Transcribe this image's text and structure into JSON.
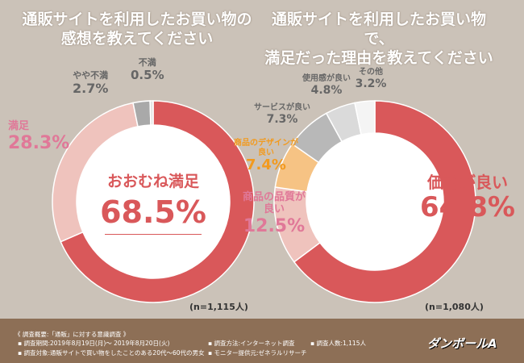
{
  "left": {
    "title_line1": "通販サイトを利用したお買い物の",
    "title_line2": "感想を教えてください",
    "center_label": "おおむね満足",
    "center_value": "68.5%",
    "n": "(n=1,115人)"
  },
  "right": {
    "title_line1": "通販サイトを利用したお買い物で、",
    "title_line2": "満足だった理由を教えてください",
    "n": "(n=1,080人)"
  },
  "chart_data": [
    {
      "type": "pie",
      "donut": true,
      "categories": [
        "おおむね満足",
        "満足",
        "やや不満",
        "不満"
      ],
      "values": [
        68.5,
        28.3,
        2.7,
        0.5
      ],
      "labels": [
        "68.5%",
        "28.3%",
        "2.7%",
        "0.5%"
      ],
      "colors": [
        "#d9585a",
        "#efc3bd",
        "#a9a9a9",
        "#e4e4e4"
      ]
    },
    {
      "type": "pie",
      "donut": true,
      "categories": [
        "価格が良い",
        "商品の品質が良い",
        "商品のデザインが良い",
        "サービスが良い",
        "使用感が良い",
        "その他"
      ],
      "values": [
        64.8,
        12.5,
        7.4,
        7.3,
        4.8,
        3.2
      ],
      "labels": [
        "64.8%",
        "12.5%",
        "7.4%",
        "7.3%",
        "4.8%",
        "3.2%"
      ],
      "colors": [
        "#d9585a",
        "#efc3bd",
        "#f6c384",
        "#b8b8b8",
        "#dadada",
        "#f4f4f4"
      ]
    }
  ],
  "footer": {
    "heading": "《 調査概要:「通販」に対する意識調査 》",
    "period": "▪ 調査期間:2019年8月19日(月)〜 2019年8月20日(火)",
    "target": "▪ 調査対象:通販サイトで買い物をしたことのある20代〜60代の男女",
    "method": "▪ 調査方法:インターネット調査",
    "monitor": "▪ モニター提供元:ゼネラルリサーチ",
    "count": "▪ 調査人数:1,115人",
    "logo": "ダンボールA"
  }
}
